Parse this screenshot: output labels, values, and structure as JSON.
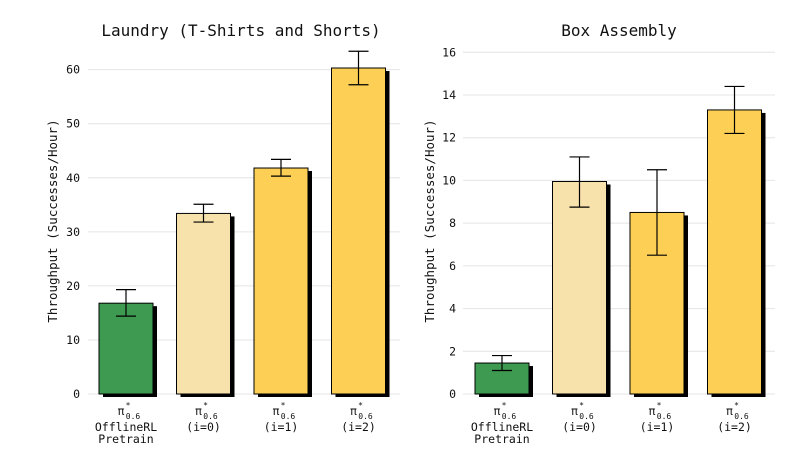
{
  "chart_data": [
    {
      "type": "bar",
      "title": "Laundry (T-Shirts and Shorts)",
      "xlabel": "",
      "ylabel": "Throughput (Successes/Hour)",
      "ylim": [
        0,
        64
      ],
      "yticks": [
        0,
        10,
        20,
        30,
        40,
        50,
        60
      ],
      "grid": "horizontal",
      "categories": [
        {
          "symbol": "π",
          "sup": "*",
          "sub": "0.6",
          "lines": [
            "OfflineRL",
            "Pretrain"
          ]
        },
        {
          "symbol": "π",
          "sup": "*",
          "sub": "0.6",
          "lines": [
            "(i=0)"
          ]
        },
        {
          "symbol": "π",
          "sup": "*",
          "sub": "0.6",
          "lines": [
            "(i=1)"
          ]
        },
        {
          "symbol": "π",
          "sup": "*",
          "sub": "0.6",
          "lines": [
            "(i=2)"
          ]
        }
      ],
      "values": [
        16.8,
        33.4,
        41.8,
        60.3
      ],
      "error_low": [
        14.4,
        31.8,
        40.3,
        57.2
      ],
      "error_high": [
        19.3,
        35.1,
        43.4,
        63.4
      ],
      "colors": [
        "#3d9a50",
        "#f8e2ab",
        "#fdd055",
        "#fdd055"
      ]
    },
    {
      "type": "bar",
      "title": "Box Assembly",
      "xlabel": "",
      "ylabel": "Throughput (Successes/Hour)",
      "ylim": [
        0,
        16.2
      ],
      "yticks": [
        0,
        2,
        4,
        6,
        8,
        10,
        12,
        14,
        16
      ],
      "grid": "horizontal",
      "categories": [
        {
          "symbol": "π",
          "sup": "*",
          "sub": "0.6",
          "lines": [
            "OfflineRL",
            "Pretrain"
          ]
        },
        {
          "symbol": "π",
          "sup": "*",
          "sub": "0.6",
          "lines": [
            "(i=0)"
          ]
        },
        {
          "symbol": "π",
          "sup": "*",
          "sub": "0.6",
          "lines": [
            "(i=1)"
          ]
        },
        {
          "symbol": "π",
          "sup": "*",
          "sub": "0.6",
          "lines": [
            "(i=2)"
          ]
        }
      ],
      "values": [
        1.45,
        9.95,
        8.5,
        13.3
      ],
      "error_low": [
        1.1,
        8.75,
        6.5,
        12.2
      ],
      "error_high": [
        1.8,
        11.1,
        10.5,
        14.4
      ],
      "colors": [
        "#3d9a50",
        "#f8e2ab",
        "#fdd055",
        "#fdd055"
      ]
    }
  ]
}
